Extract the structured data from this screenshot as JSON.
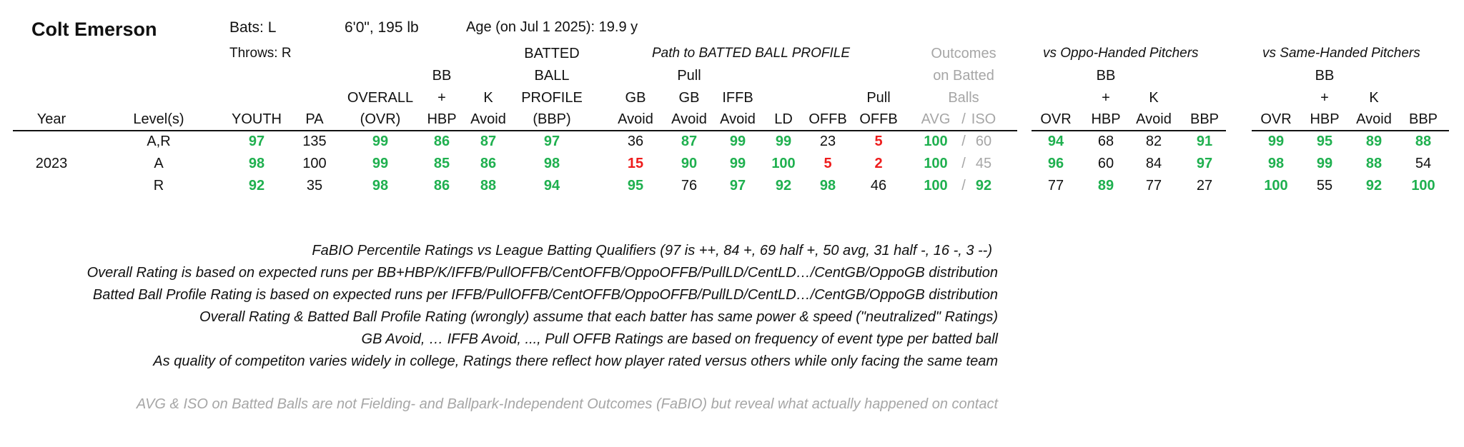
{
  "player": {
    "name": "Colt Emerson",
    "bats": "Bats: L",
    "throws": "Throws: R",
    "height_weight": "6'0\", 195 lb",
    "age": "Age (on Jul 1 2025): 19.9 y"
  },
  "group_headers": {
    "path": "Path to BATTED BALL PROFILE",
    "outcomes_1": "Outcomes",
    "outcomes_2": "on Batted",
    "outcomes_3": "Balls",
    "oppo": "vs Oppo-Handed Pitchers",
    "same": "vs Same-Handed Pitchers"
  },
  "col_headers": {
    "year": "Year",
    "levels": "Level(s)",
    "youth": "YOUTH",
    "pa": "PA",
    "ovr_1": "OVERALL",
    "ovr_2": "(OVR)",
    "bb_1": "BB",
    "bb_2": "+",
    "bb_3": "HBP",
    "k_1": "K",
    "k_2": "Avoid",
    "bbp_1": "BATTED",
    "bbp_2": "BALL",
    "bbp_3": "PROFILE",
    "bbp_4": "(BBP)",
    "gb_1": "GB",
    "gb_2": "Avoid",
    "pullgb_1": "Pull",
    "pullgb_2": "GB",
    "pullgb_3": "Avoid",
    "iffb_1": "IFFB",
    "iffb_2": "Avoid",
    "ld": "LD",
    "offb": "OFFB",
    "pulloffb_1": "Pull",
    "pulloffb_2": "OFFB",
    "avg": "AVG",
    "slash": "/",
    "iso": "ISO",
    "o_ovr": "OVR",
    "o_bb_1": "BB",
    "o_bb_2": "+",
    "o_bb_3": "HBP",
    "o_k_1": "K",
    "o_k_2": "Avoid",
    "o_bbp": "BBP",
    "s_ovr": "OVR",
    "s_bb_1": "BB",
    "s_bb_2": "+",
    "s_bb_3": "HBP",
    "s_k_1": "K",
    "s_k_2": "Avoid",
    "s_bbp": "BBP"
  },
  "rows": [
    {
      "year": "",
      "levels": "A,R",
      "cells": [
        {
          "v": "97",
          "c": "green"
        },
        {
          "v": "135",
          "c": "black"
        },
        {
          "v": "99",
          "c": "green"
        },
        {
          "v": "86",
          "c": "green"
        },
        {
          "v": "87",
          "c": "green"
        },
        {
          "v": "97",
          "c": "green"
        },
        {
          "v": "36",
          "c": "black"
        },
        {
          "v": "87",
          "c": "green"
        },
        {
          "v": "99",
          "c": "green"
        },
        {
          "v": "99",
          "c": "green"
        },
        {
          "v": "23",
          "c": "black"
        },
        {
          "v": "5",
          "c": "red"
        },
        {
          "v": "100",
          "c": "green"
        },
        {
          "v": "60",
          "c": "gray"
        },
        {
          "v": "94",
          "c": "green"
        },
        {
          "v": "68",
          "c": "black"
        },
        {
          "v": "82",
          "c": "black"
        },
        {
          "v": "91",
          "c": "green"
        },
        {
          "v": "99",
          "c": "green"
        },
        {
          "v": "95",
          "c": "green"
        },
        {
          "v": "89",
          "c": "green"
        },
        {
          "v": "88",
          "c": "green"
        }
      ]
    },
    {
      "year": "2023",
      "levels": "A",
      "cells": [
        {
          "v": "98",
          "c": "green"
        },
        {
          "v": "100",
          "c": "black"
        },
        {
          "v": "99",
          "c": "green"
        },
        {
          "v": "85",
          "c": "green"
        },
        {
          "v": "86",
          "c": "green"
        },
        {
          "v": "98",
          "c": "green"
        },
        {
          "v": "15",
          "c": "red"
        },
        {
          "v": "90",
          "c": "green"
        },
        {
          "v": "99",
          "c": "green"
        },
        {
          "v": "100",
          "c": "green"
        },
        {
          "v": "5",
          "c": "red"
        },
        {
          "v": "2",
          "c": "red"
        },
        {
          "v": "100",
          "c": "green"
        },
        {
          "v": "45",
          "c": "gray"
        },
        {
          "v": "96",
          "c": "green"
        },
        {
          "v": "60",
          "c": "black"
        },
        {
          "v": "84",
          "c": "black"
        },
        {
          "v": "97",
          "c": "green"
        },
        {
          "v": "98",
          "c": "green"
        },
        {
          "v": "99",
          "c": "green"
        },
        {
          "v": "88",
          "c": "green"
        },
        {
          "v": "54",
          "c": "black"
        }
      ]
    },
    {
      "year": "",
      "levels": "R",
      "cells": [
        {
          "v": "92",
          "c": "green"
        },
        {
          "v": "35",
          "c": "black"
        },
        {
          "v": "98",
          "c": "green"
        },
        {
          "v": "86",
          "c": "green"
        },
        {
          "v": "88",
          "c": "green"
        },
        {
          "v": "94",
          "c": "green"
        },
        {
          "v": "95",
          "c": "green"
        },
        {
          "v": "76",
          "c": "black"
        },
        {
          "v": "97",
          "c": "green"
        },
        {
          "v": "92",
          "c": "green"
        },
        {
          "v": "98",
          "c": "green"
        },
        {
          "v": "46",
          "c": "black"
        },
        {
          "v": "100",
          "c": "green"
        },
        {
          "v": "92",
          "c": "green"
        },
        {
          "v": "77",
          "c": "black"
        },
        {
          "v": "89",
          "c": "green"
        },
        {
          "v": "77",
          "c": "black"
        },
        {
          "v": "27",
          "c": "black"
        },
        {
          "v": "100",
          "c": "green"
        },
        {
          "v": "55",
          "c": "black"
        },
        {
          "v": "92",
          "c": "green"
        },
        {
          "v": "100",
          "c": "green"
        }
      ]
    }
  ],
  "notes": [
    "FaBIO Percentile Ratings vs League Batting Qualifiers (97 is ++, 84 +, 69 half +, 50 avg, 31 half -, 16 -, 3 --)",
    "Overall Rating is based on expected runs per BB+HBP/K/IFFB/PullOFFB/CentOFFB/OppoOFFB/PullLD/CentLD…/CentGB/OppoGB distribution",
    "Batted Ball Profile Rating is based on expected runs per IFFB/PullOFFB/CentOFFB/OppoOFFB/PullLD/CentLD…/CentGB/OppoGB distribution",
    "Overall Rating & Batted Ball Profile Rating (wrongly) assume that each batter has same power & speed (\"neutralized\" Ratings)",
    "GB Avoid, … IFFB Avoid, ..., Pull OFFB Ratings are based on frequency of event type per batted ball",
    "As quality of competiton varies widely in college, Ratings there reflect how player rated versus others while only facing the same team"
  ],
  "footnote": "AVG & ISO on Batted Balls are not Fielding- and Ballpark-Independent Outcomes (FaBIO) but reveal what actually happened on contact",
  "colors": {
    "green": "#1fb04f",
    "red": "#ee1c1c",
    "gray": "#a6a6a6"
  }
}
